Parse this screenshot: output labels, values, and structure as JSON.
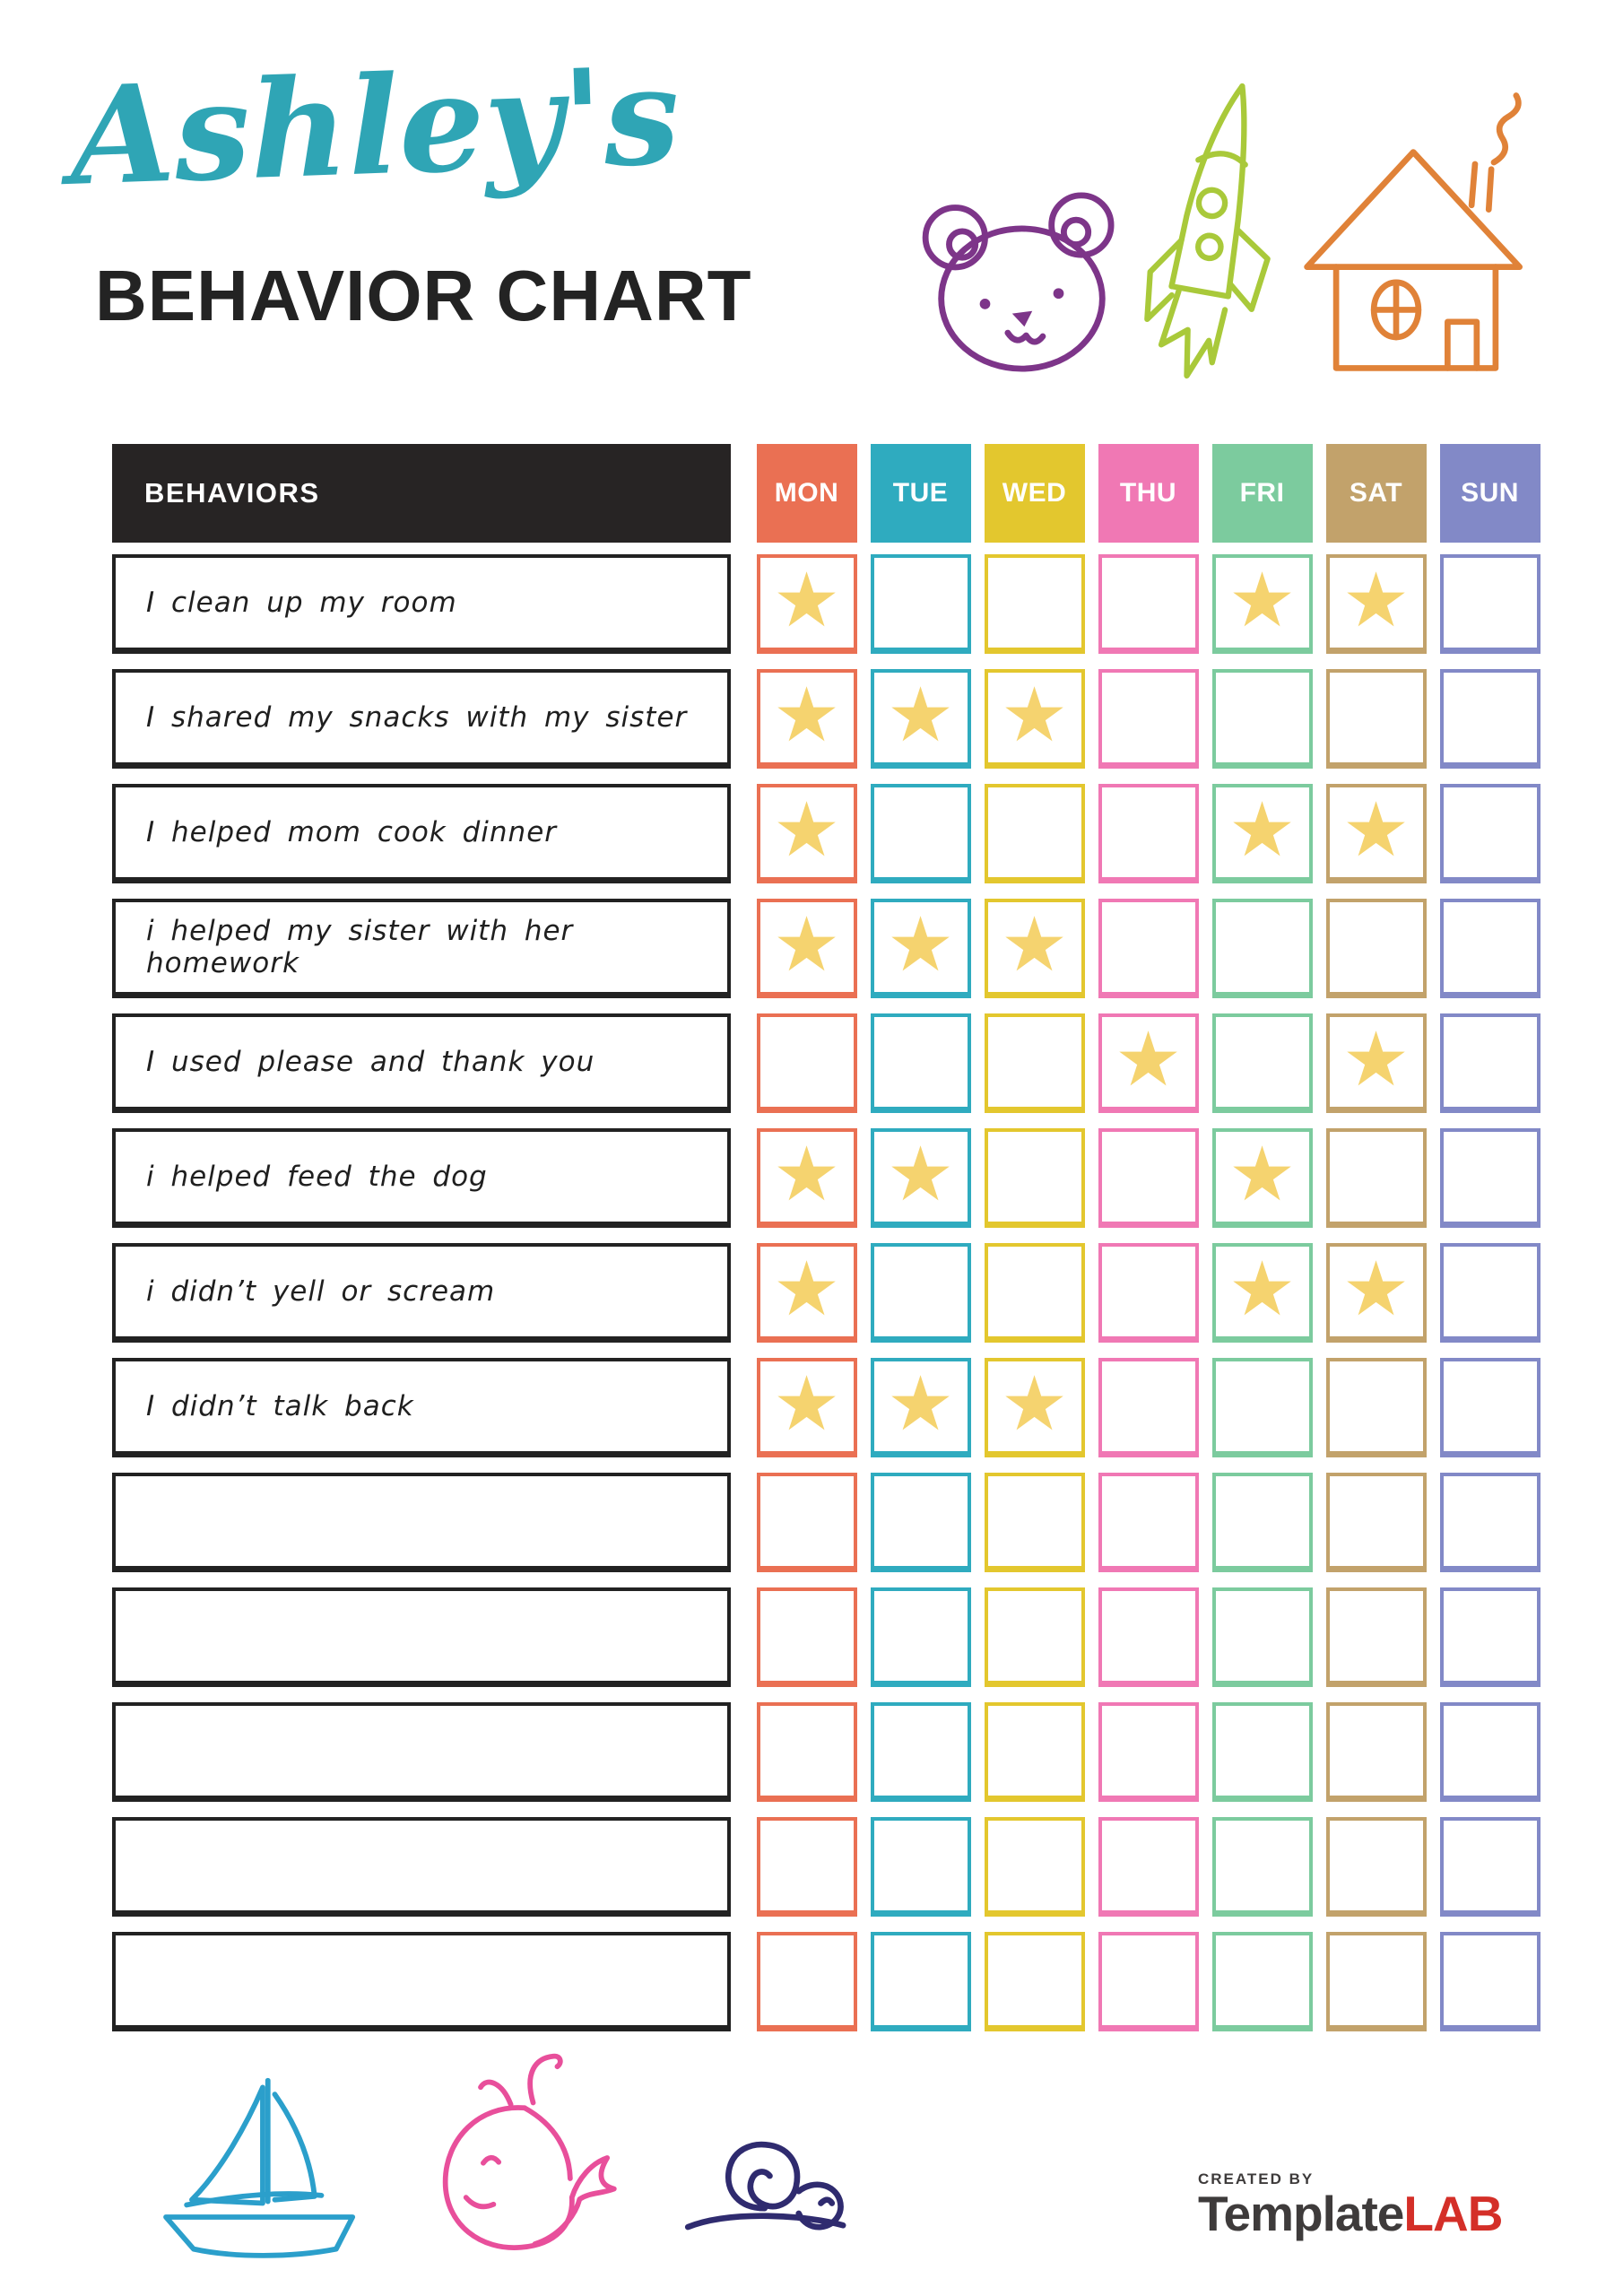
{
  "page": {
    "owner": "Ashley's",
    "title": "BEHAVIOR CHART"
  },
  "colors": {
    "owner_script": "#2FA5B5",
    "title_text": "#232323",
    "header_bg": "#272424",
    "header_text": "#FFFFFF",
    "row_border": "#222222",
    "behavior_text": "#1F1F1F",
    "star": "#F5D36F",
    "doodles": {
      "bear": "#7D3589",
      "rocket": "#A9C93A",
      "house": "#E08238",
      "sailboat": "#2B9FCB",
      "whale": "#E84F9B",
      "snail": "#2F2B6F"
    },
    "brand_text": "#3E3B3B",
    "brand_accent": "#D42F28"
  },
  "table": {
    "behaviors_header": "BEHAVIORS",
    "star_glyph": "★",
    "days": [
      {
        "label": "MON",
        "color": "#EA7053"
      },
      {
        "label": "TUE",
        "color": "#2FABBF"
      },
      {
        "label": "WED",
        "color": "#E3C72E"
      },
      {
        "label": "THU",
        "color": "#F078B4"
      },
      {
        "label": "FRI",
        "color": "#7CCB9E"
      },
      {
        "label": "SAT",
        "color": "#C2A26B"
      },
      {
        "label": "SUN",
        "color": "#8289C7"
      }
    ],
    "rows": [
      {
        "label": "I clean up my room",
        "stars": [
          "MON",
          "FRI",
          "SAT"
        ]
      },
      {
        "label": "I shared my snacks with my sister",
        "stars": [
          "MON",
          "TUE",
          "WED"
        ]
      },
      {
        "label": "I helped mom cook dinner",
        "stars": [
          "MON",
          "FRI",
          "SAT"
        ]
      },
      {
        "label": "i helped my sister with her homework",
        "stars": [
          "MON",
          "TUE",
          "WED"
        ]
      },
      {
        "label": "I used please and thank you",
        "stars": [
          "THU",
          "SAT"
        ]
      },
      {
        "label": "i helped feed the dog",
        "stars": [
          "MON",
          "TUE",
          "FRI"
        ]
      },
      {
        "label": "i didn’t yell or scream",
        "stars": [
          "MON",
          "FRI",
          "SAT"
        ]
      },
      {
        "label": "I didn’t talk back",
        "stars": [
          "MON",
          "TUE",
          "WED"
        ]
      },
      {
        "label": "",
        "stars": []
      },
      {
        "label": "",
        "stars": []
      },
      {
        "label": "",
        "stars": []
      },
      {
        "label": "",
        "stars": []
      },
      {
        "label": "",
        "stars": []
      }
    ]
  },
  "footer": {
    "created_by": "CREATED BY",
    "brand_primary": "Template",
    "brand_accent": "LAB"
  }
}
